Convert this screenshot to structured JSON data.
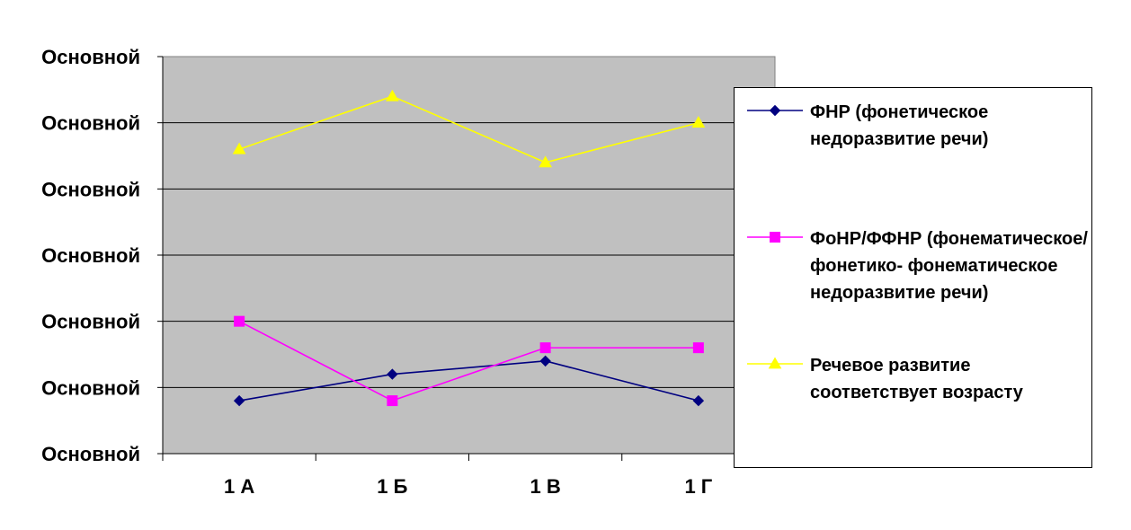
{
  "chart_data": {
    "type": "line",
    "categories": [
      "1 А",
      "1 Б",
      "1 В",
      "1 Г"
    ],
    "y_tick_labels": [
      "Основной",
      "Основной",
      "Основной",
      "Основной",
      "Основной",
      "Основной",
      "Основной"
    ],
    "ylim": [
      0,
      6
    ],
    "y_step": 1,
    "grid": true,
    "legend_position": "right",
    "plot_background": "#c0c0c0",
    "series": [
      {
        "name": "ФНР (фонетическое недоразвитие речи)",
        "values": [
          0.8,
          1.2,
          1.4,
          0.8
        ],
        "color": "#000080",
        "marker": "diamond-icon"
      },
      {
        "name": "ФоНР/ФФНР (фонематическое/ фонетико- фонематическое недоразвитие речи)",
        "values": [
          2.0,
          0.8,
          1.6,
          1.6
        ],
        "color": "#ff00ff",
        "marker": "square-icon"
      },
      {
        "name": "Речевое развитие соответствует возрасту",
        "values": [
          4.6,
          5.4,
          4.4,
          5.0
        ],
        "color": "#ffff00",
        "marker": "triangle-icon"
      }
    ]
  }
}
